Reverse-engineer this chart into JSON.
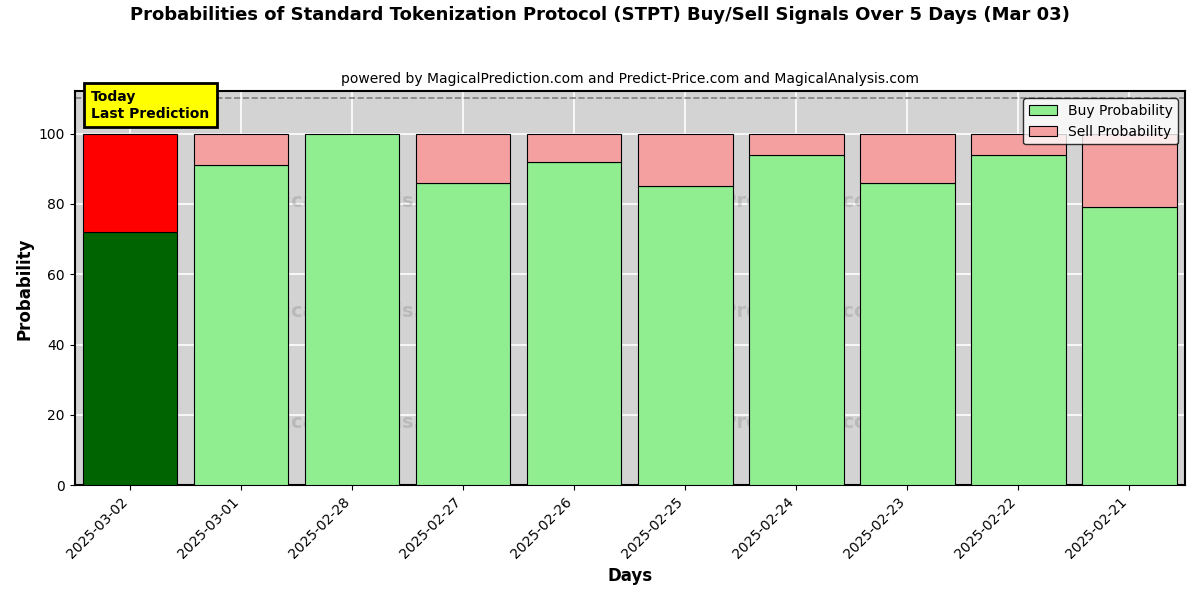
{
  "title": "Probabilities of Standard Tokenization Protocol (STPT) Buy/Sell Signals Over 5 Days (Mar 03)",
  "subtitle": "powered by MagicalPrediction.com and Predict-Price.com and MagicalAnalysis.com",
  "xlabel": "Days",
  "ylabel": "Probability",
  "categories": [
    "2025-03-02",
    "2025-03-01",
    "2025-02-28",
    "2025-02-27",
    "2025-02-26",
    "2025-02-25",
    "2025-02-24",
    "2025-02-23",
    "2025-02-22",
    "2025-02-21"
  ],
  "buy_values": [
    72,
    91,
    100,
    86,
    92,
    85,
    94,
    86,
    94,
    79
  ],
  "sell_values": [
    28,
    9,
    0,
    14,
    8,
    15,
    6,
    14,
    6,
    21
  ],
  "today_buy_color": "#006400",
  "today_sell_color": "#ff0000",
  "buy_color": "#90ee90",
  "sell_color": "#f4a0a0",
  "today_label_bg": "#ffff00",
  "today_label_text": "Today\nLast Prediction",
  "ylim": [
    0,
    112
  ],
  "yticks": [
    0,
    20,
    40,
    60,
    80,
    100
  ],
  "dashed_line_y": 110,
  "legend_buy": "Buy Probability",
  "legend_sell": "Sell Probability",
  "background_color": "#ffffff",
  "plot_bg_color": "#d3d3d3",
  "grid_color": "#ffffff"
}
